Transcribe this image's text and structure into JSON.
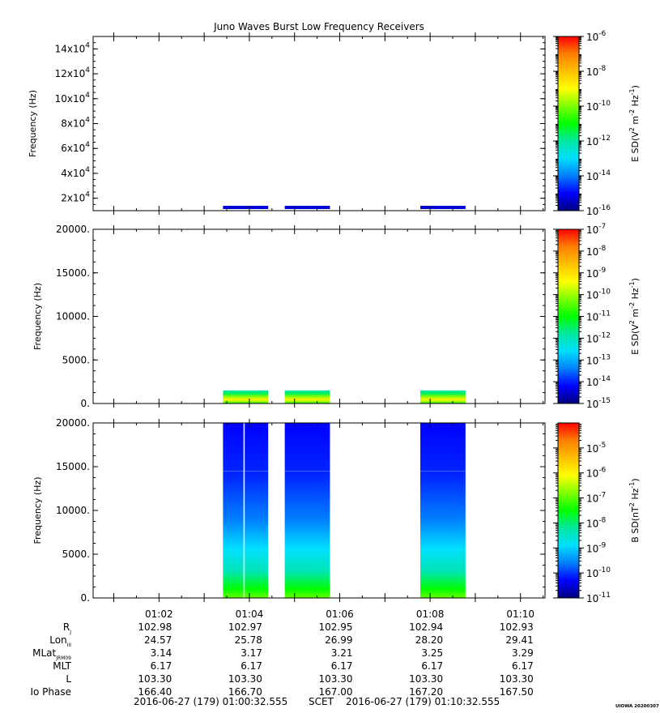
{
  "title": "Juno Waves Burst Low Frequency Receivers",
  "footer_left": "2016-06-27 (179) 01:00:32.555",
  "footer_mid": "SCET",
  "footer_right": "2016-06-27 (179) 01:10:32.555",
  "credit": "UIOWA 20200307",
  "time_ticks": [
    "01:02",
    "01:04",
    "01:06",
    "01:08",
    "01:10"
  ],
  "ephemeris": {
    "labels": [
      "R",
      "Lon",
      "MLat",
      "MLT",
      "L",
      "Io Phase"
    ],
    "label_subs": [
      "J",
      "III",
      "JRM09",
      "",
      "",
      ""
    ],
    "rows": [
      [
        "102.98",
        "102.97",
        "102.95",
        "102.94",
        "102.93"
      ],
      [
        "24.57",
        "25.78",
        "26.99",
        "28.20",
        "29.41"
      ],
      [
        "3.14",
        "3.17",
        "3.21",
        "3.25",
        "3.29"
      ],
      [
        "6.17",
        "6.17",
        "6.17",
        "6.17",
        "6.17"
      ],
      [
        "103.30",
        "103.30",
        "103.30",
        "103.30",
        "103.30"
      ],
      [
        "166.40",
        "166.70",
        "167.00",
        "167.20",
        "167.50"
      ]
    ]
  },
  "colors": {
    "colormap": [
      "#00007f",
      "#0000ff",
      "#007fff",
      "#00dfff",
      "#00e8a0",
      "#00ff00",
      "#7fff00",
      "#ffff00",
      "#ffc000",
      "#ff7f00",
      "#ff0000"
    ]
  },
  "chart_data": [
    {
      "type": "heatmap",
      "title": "Juno Waves Burst Low Frequency Receivers",
      "ylabel": "Frequency (Hz)",
      "y_ticks": [
        {
          "mant": "2x10",
          "exp": "4"
        },
        {
          "mant": "4x10",
          "exp": "4"
        },
        {
          "mant": "6x10",
          "exp": "4"
        },
        {
          "mant": "8x10",
          "exp": "4"
        },
        {
          "mant": "10x10",
          "exp": "4"
        },
        {
          "mant": "12x10",
          "exp": "4"
        },
        {
          "mant": "14x10",
          "exp": "4"
        }
      ],
      "y_tick_values": [
        20000,
        40000,
        60000,
        80000,
        100000,
        120000,
        140000
      ],
      "ylim": [
        10000,
        150000
      ],
      "xlim": [
        "01:00:32.555",
        "01:10:32.555"
      ],
      "bursts": [
        [
          "01:03:25",
          "01:04:25"
        ],
        [
          "01:04:47",
          "01:05:47"
        ],
        [
          "01:07:47",
          "01:08:47"
        ]
      ],
      "colorbar": {
        "label_main": "E SD(V",
        "label_exp1": "2",
        "label_mid": " m",
        "label_exp2": "-2",
        "label_end": " Hz",
        "label_exp3": "-1",
        "label_close": ")",
        "range_log10": [
          -16,
          -6
        ],
        "tick_exps": [
          "-6",
          "-8",
          "-10",
          "-12",
          "-14",
          "-16"
        ],
        "tick_values_log10": [
          -6,
          -8,
          -10,
          -12,
          -14,
          -16
        ]
      },
      "typical_log10": -14.3
    },
    {
      "type": "heatmap",
      "ylabel": "Frequency (Hz)",
      "y_ticks": [
        "0.",
        "5000.",
        "10000.",
        "15000.",
        "20000."
      ],
      "y_tick_values": [
        0,
        5000,
        10000,
        15000,
        20000
      ],
      "ylim": [
        0,
        20000
      ],
      "xlim": [
        "01:00:32.555",
        "01:10:32.555"
      ],
      "bursts": [
        [
          "01:03:25",
          "01:04:25"
        ],
        [
          "01:04:47",
          "01:05:47"
        ],
        [
          "01:07:47",
          "01:08:47"
        ]
      ],
      "colorbar": {
        "label_main": "E SD(V",
        "label_exp1": "2",
        "label_mid": " m",
        "label_exp2": "-2",
        "label_end": " Hz",
        "label_exp3": "-1",
        "label_close": ")",
        "range_log10": [
          -15,
          -7
        ],
        "tick_exps": [
          "-7",
          "-8",
          "-9",
          "-10",
          "-11",
          "-12",
          "-13",
          "-14",
          "-15"
        ],
        "tick_values_log10": [
          -7,
          -8,
          -9,
          -10,
          -11,
          -12,
          -13,
          -14,
          -15
        ]
      },
      "low_freq_band_hz": [
        0,
        1500
      ],
      "low_freq_peak_hz": 500
    },
    {
      "type": "heatmap",
      "ylabel": "Frequency (Hz)",
      "y_ticks": [
        "0.",
        "5000.",
        "10000.",
        "15000.",
        "20000."
      ],
      "y_tick_values": [
        0,
        5000,
        10000,
        15000,
        20000
      ],
      "ylim": [
        0,
        20000
      ],
      "xlim": [
        "01:00:32.555",
        "01:10:32.555"
      ],
      "bursts": [
        [
          "01:03:25",
          "01:04:25"
        ],
        [
          "01:04:47",
          "01:05:47"
        ],
        [
          "01:07:47",
          "01:08:47"
        ]
      ],
      "colorbar": {
        "label_main": "B SD(nT",
        "label_exp1": "2",
        "label_mid": " Hz",
        "label_exp2": "-1",
        "label_end": "",
        "label_exp3": "",
        "label_close": ")",
        "range_log10": [
          -11,
          -4
        ],
        "tick_exps": [
          "-5",
          "-6",
          "-7",
          "-8",
          "-9",
          "-10",
          "-11"
        ],
        "tick_values_log10": [
          -5,
          -6,
          -7,
          -8,
          -9,
          -10,
          -11
        ]
      },
      "spike_time": "01:03:53",
      "line_freq_hz": 14500
    }
  ]
}
